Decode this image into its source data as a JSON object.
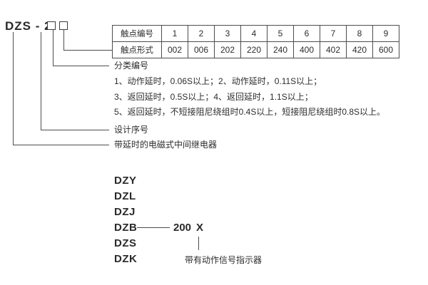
{
  "title": {
    "model_code": "DZS - 2"
  },
  "contact_table": {
    "row1_label": "触点编号",
    "row2_label": "触点形式",
    "numbers": [
      "1",
      "2",
      "3",
      "4",
      "5",
      "6",
      "7",
      "8",
      "9"
    ],
    "forms": [
      "002",
      "006",
      "202",
      "220",
      "240",
      "400",
      "402",
      "420",
      "600"
    ]
  },
  "callouts": {
    "classification_label": "分类编号",
    "classification_notes": [
      "1、动作延时，0.06S以上；2、动作延时，0.11S以上；",
      "3、返回延时，0.5S以上；4、返回延时，1.1S以上；",
      "5、返回延时，不短接阻尼绕组时0.4S以上，短接阻尼绕组时0.8S以上。"
    ],
    "design_serial_label": "设计序号",
    "relay_description": "带延时的电磁式中间继电器"
  },
  "series_list": {
    "models": [
      "DZY",
      "DZL",
      "DZJ",
      "DZB",
      "DZS",
      "DZK"
    ],
    "dzb_number": "200",
    "dzb_variant": "X",
    "variant_note": "带有动作信号指示器"
  },
  "colors": {
    "line": "#4d4d4d",
    "text": "#2d2d2d",
    "background": "#ffffff"
  }
}
